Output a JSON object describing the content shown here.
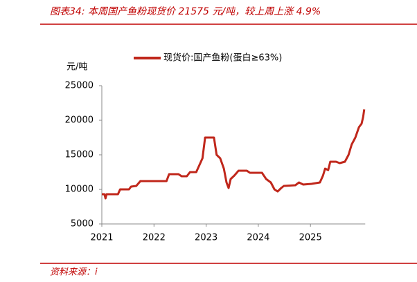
{
  "chart_data": {
    "type": "line",
    "title": "图表34:  本周国产鱼粉现货价 21575 元/吨，较上周上涨 4.9%",
    "y_label": "元/吨",
    "source": "资料来源：i",
    "x": [
      2021.0,
      2021.05,
      2021.07,
      2021.09,
      2021.31,
      2021.35,
      2021.52,
      2021.56,
      2021.66,
      2021.74,
      2022.24,
      2022.29,
      2022.47,
      2022.53,
      2022.63,
      2022.69,
      2022.81,
      2022.87,
      2022.93,
      2022.98,
      2023.15,
      2023.2,
      2023.27,
      2023.34,
      2023.39,
      2023.43,
      2023.47,
      2023.54,
      2023.62,
      2023.78,
      2023.84,
      2024.07,
      2024.15,
      2024.24,
      2024.31,
      2024.37,
      2024.44,
      2024.49,
      2024.71,
      2024.78,
      2024.86,
      2025.02,
      2025.18,
      2025.24,
      2025.28,
      2025.34,
      2025.38,
      2025.49,
      2025.56,
      2025.66,
      2025.73,
      2025.79,
      2025.86,
      2025.93,
      2025.98,
      2026.01,
      2026.03
    ],
    "series": [
      {
        "name": "现货价:国产鱼粉(蛋白≥63%)",
        "color": "#c0271b",
        "values": [
          9300,
          9300,
          8700,
          9300,
          9300,
          10000,
          10000,
          10400,
          10500,
          11200,
          11200,
          12200,
          12200,
          11900,
          11900,
          12500,
          12500,
          13500,
          14500,
          17500,
          17500,
          15000,
          14500,
          13000,
          11000,
          10200,
          11500,
          12000,
          12700,
          12700,
          12400,
          12400,
          11500,
          11000,
          10000,
          9700,
          10200,
          10500,
          10600,
          11000,
          10700,
          10800,
          11000,
          12000,
          13000,
          12800,
          14000,
          14000,
          13800,
          14000,
          15000,
          16500,
          17500,
          19000,
          19500,
          20500,
          21575
        ]
      }
    ],
    "xlim": [
      2021,
      2026.05
    ],
    "xticks": [
      2021,
      2022,
      2023,
      2024,
      2025
    ],
    "ylim": [
      5000,
      25000
    ],
    "yticks": [
      5000,
      10000,
      15000,
      20000,
      25000
    ],
    "legend": "top"
  }
}
